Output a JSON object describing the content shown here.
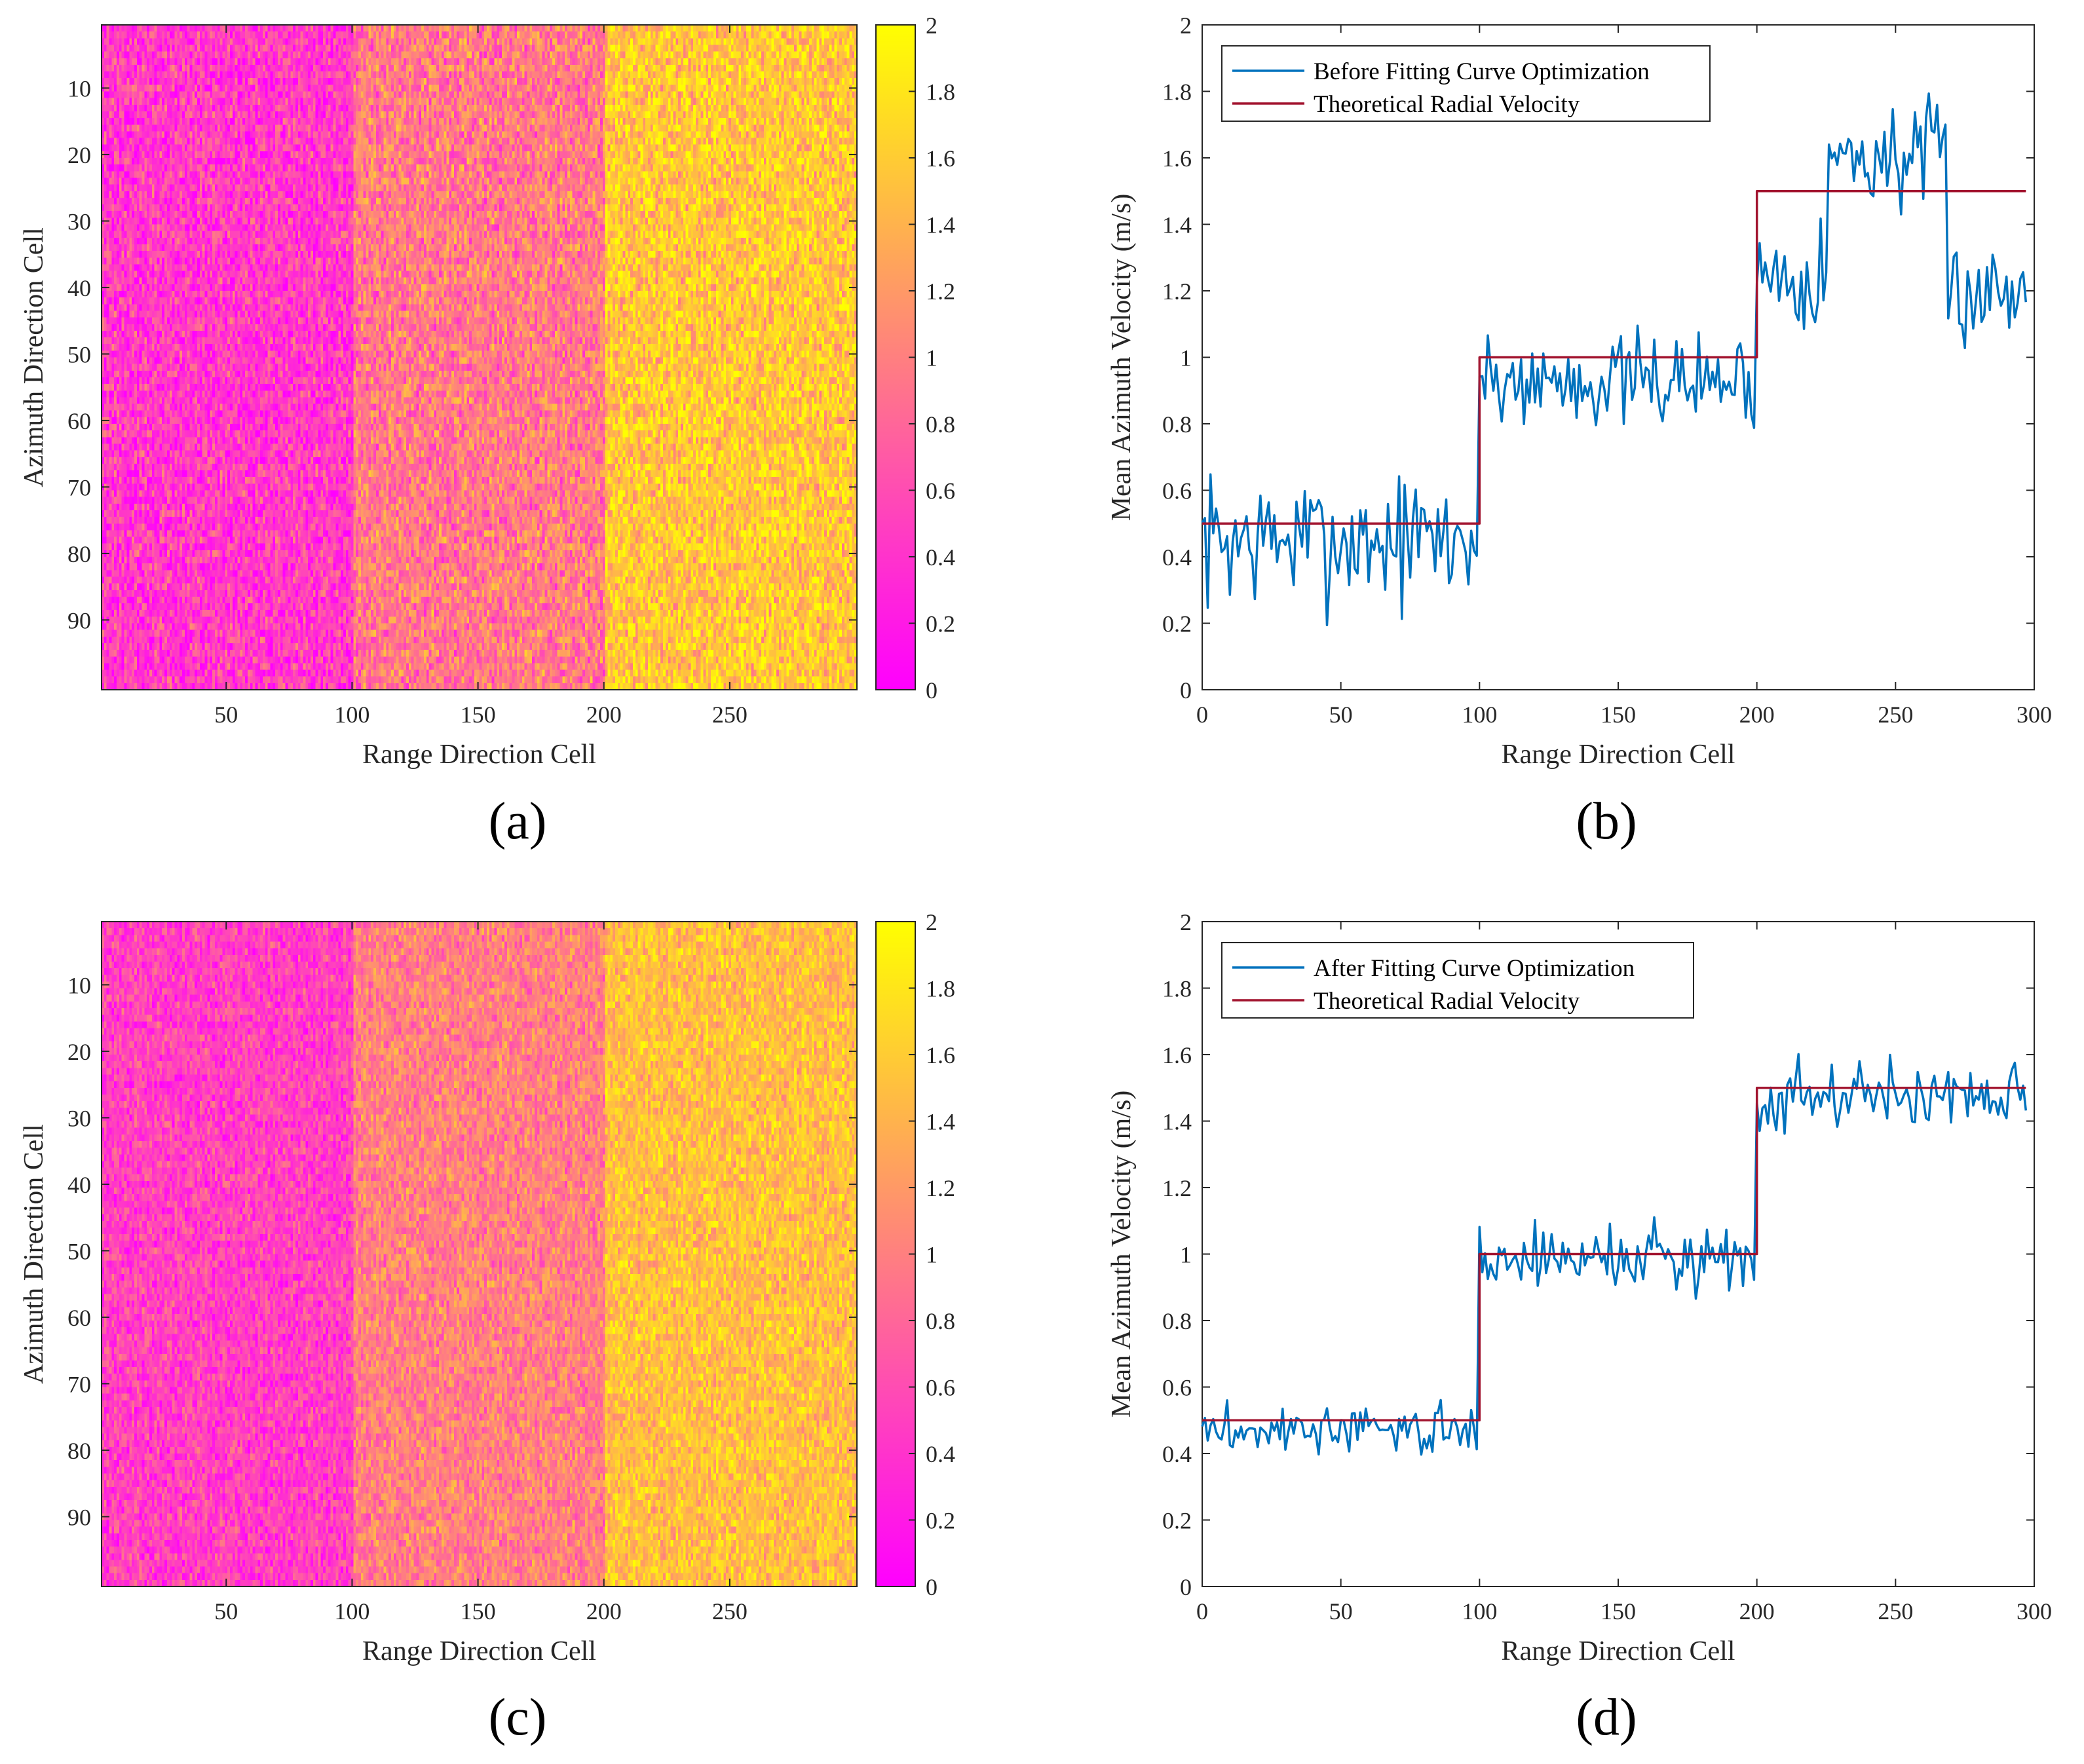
{
  "chart_data": [
    {
      "id": "a",
      "panel_label": "(a)",
      "type": "heatmap",
      "xlabel": "Range Direction Cell",
      "ylabel": "Azimuth Direction Cell",
      "xlim": [
        0.5,
        300.5
      ],
      "ylim": [
        0.5,
        100.5
      ],
      "xticks": [
        50,
        100,
        150,
        200,
        250
      ],
      "yticks": [
        10,
        20,
        30,
        40,
        50,
        60,
        70,
        80,
        90
      ],
      "clim": [
        0,
        2
      ],
      "colorbar_ticks": [
        0,
        0.2,
        0.4,
        0.6,
        0.8,
        1,
        1.2,
        1.4,
        1.6,
        1.8,
        2
      ],
      "colormap": [
        "#ff00ff",
        "#ffff00"
      ],
      "grid_size": [
        100,
        300
      ],
      "noise_seed": 11,
      "segments": [
        {
          "x_from": 1,
          "x_to": 100,
          "mean": 0.45,
          "noise": 0.5
        },
        {
          "x_from": 101,
          "x_to": 200,
          "mean": 0.95,
          "noise": 0.5
        },
        {
          "x_from": 201,
          "x_to": 300,
          "mean": 1.55,
          "noise": 0.5
        }
      ]
    },
    {
      "id": "b",
      "panel_label": "(b)",
      "type": "line",
      "xlabel": "Range Direction Cell",
      "ylabel": "Mean Azimuth Velocity (m/s)",
      "xlim": [
        0,
        300
      ],
      "ylim": [
        0,
        2
      ],
      "xticks": [
        0,
        50,
        100,
        150,
        200,
        250,
        300
      ],
      "yticks": [
        0,
        0.2,
        0.4,
        0.6,
        0.8,
        1,
        1.2,
        1.4,
        1.6,
        1.8,
        2
      ],
      "legend_position": "top-left",
      "series": [
        {
          "name": "Before Fitting Curve Optimization",
          "color": "#0072BD",
          "noise_seed": 7,
          "x_max": 297,
          "levels": [
            {
              "x_from": 0,
              "x_to": 99,
              "mean": 0.45,
              "noise": 0.1
            },
            {
              "x_from": 100,
              "x_to": 199,
              "mean": 0.93,
              "noise": 0.07
            },
            {
              "x_from": 200,
              "x_to": 225,
              "mean": 1.25,
              "noise": 0.08
            },
            {
              "x_from": 226,
              "x_to": 268,
              "mean": 1.6,
              "noise": 0.08
            },
            {
              "x_from": 269,
              "x_to": 297,
              "mean": 1.2,
              "noise": 0.08
            }
          ]
        },
        {
          "name": "Theoretical Radial Velocity",
          "color": "#A2142F",
          "x": [
            0,
            100,
            100,
            200,
            200,
            297
          ],
          "y": [
            0.5,
            0.5,
            1.0,
            1.0,
            1.5,
            1.5
          ]
        }
      ]
    },
    {
      "id": "c",
      "panel_label": "(c)",
      "type": "heatmap",
      "xlabel": "Range Direction Cell",
      "ylabel": "Azimuth Direction Cell",
      "xlim": [
        0.5,
        300.5
      ],
      "ylim": [
        0.5,
        100.5
      ],
      "xticks": [
        50,
        100,
        150,
        200,
        250
      ],
      "yticks": [
        10,
        20,
        30,
        40,
        50,
        60,
        70,
        80,
        90
      ],
      "clim": [
        0,
        2
      ],
      "colorbar_ticks": [
        0,
        0.2,
        0.4,
        0.6,
        0.8,
        1,
        1.2,
        1.4,
        1.6,
        1.8,
        2
      ],
      "colormap": [
        "#ff00ff",
        "#ffff00"
      ],
      "grid_size": [
        100,
        300
      ],
      "noise_seed": 23,
      "segments": [
        {
          "x_from": 1,
          "x_to": 100,
          "mean": 0.5,
          "noise": 0.4
        },
        {
          "x_from": 101,
          "x_to": 200,
          "mean": 1.0,
          "noise": 0.4
        },
        {
          "x_from": 201,
          "x_to": 300,
          "mean": 1.5,
          "noise": 0.4
        }
      ]
    },
    {
      "id": "d",
      "panel_label": "(d)",
      "type": "line",
      "xlabel": "Range Direction Cell",
      "ylabel": "Mean Azimuth Velocity (m/s)",
      "xlim": [
        0,
        300
      ],
      "ylim": [
        0,
        2
      ],
      "xticks": [
        0,
        50,
        100,
        150,
        200,
        250,
        300
      ],
      "yticks": [
        0,
        0.2,
        0.4,
        0.6,
        0.8,
        1,
        1.2,
        1.4,
        1.6,
        1.8,
        2
      ],
      "legend_position": "top-left",
      "series": [
        {
          "name": "After Fitting Curve Optimization",
          "color": "#0072BD",
          "noise_seed": 3,
          "x_max": 297,
          "levels": [
            {
              "x_from": 0,
              "x_to": 99,
              "mean": 0.47,
              "noise": 0.035
            },
            {
              "x_from": 100,
              "x_to": 199,
              "mean": 0.99,
              "noise": 0.05
            },
            {
              "x_from": 200,
              "x_to": 297,
              "mean": 1.48,
              "noise": 0.05
            }
          ]
        },
        {
          "name": "Theoretical Radial Velocity",
          "color": "#A2142F",
          "x": [
            0,
            100,
            100,
            200,
            200,
            297
          ],
          "y": [
            0.5,
            0.5,
            1.0,
            1.0,
            1.5,
            1.5
          ]
        }
      ]
    }
  ]
}
